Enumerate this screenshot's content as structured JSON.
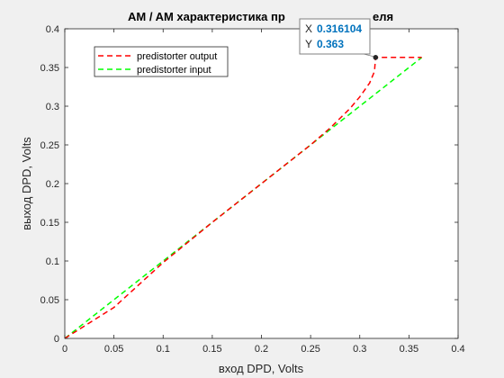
{
  "chart_data": {
    "type": "line",
    "title": "AM / AM характеристика пр",
    "title_tail": "еля",
    "xlabel": "вход DPD, Volts",
    "ylabel": "выход DPD, Volts",
    "xlim": [
      0,
      0.4
    ],
    "ylim": [
      0,
      0.4
    ],
    "xticks": [
      "0",
      "0.05",
      "0.1",
      "0.15",
      "0.2",
      "0.25",
      "0.3",
      "0.35",
      "0.4"
    ],
    "yticks": [
      "0",
      "0.05",
      "0.1",
      "0.15",
      "0.2",
      "0.25",
      "0.3",
      "0.35",
      "0.4"
    ],
    "grid": false,
    "legend_position": "top-left",
    "series": [
      {
        "name": "predistorter output",
        "color": "#ff0000",
        "style": "dashed",
        "x": [
          0,
          0.05,
          0.1,
          0.15,
          0.2,
          0.25,
          0.27,
          0.29,
          0.3,
          0.31,
          0.315,
          0.3161,
          0.363
        ],
        "y": [
          0,
          0.04,
          0.098,
          0.15,
          0.2,
          0.25,
          0.272,
          0.297,
          0.312,
          0.33,
          0.345,
          0.363,
          0.363
        ]
      },
      {
        "name": "predistorter input",
        "color": "#00ff00",
        "style": "dashed",
        "x": [
          0,
          0.363
        ],
        "y": [
          0,
          0.363
        ]
      }
    ],
    "datatip": {
      "x_label": "X",
      "x_value": "0.316104",
      "y_label": "Y",
      "y_value": "0.363",
      "x": 0.316104,
      "y": 0.363,
      "value_color": "#0072bd"
    }
  }
}
